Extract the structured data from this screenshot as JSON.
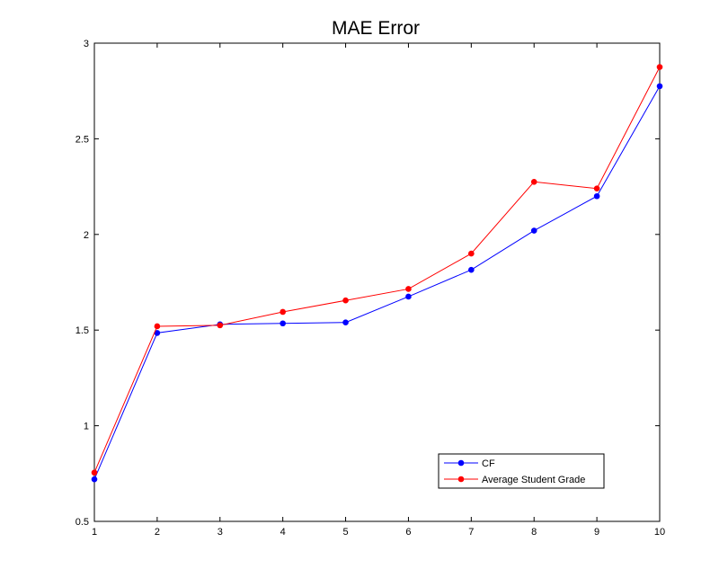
{
  "chart_data": {
    "type": "line",
    "title": "MAE Error",
    "xlabel": "",
    "ylabel": "",
    "x": [
      1,
      2,
      3,
      4,
      5,
      6,
      7,
      8,
      9,
      10
    ],
    "xlim": [
      1,
      10
    ],
    "ylim": [
      0.5,
      3
    ],
    "xticks": [
      "1",
      "2",
      "3",
      "4",
      "5",
      "6",
      "7",
      "8",
      "9",
      "10"
    ],
    "yticks": [
      "0.5",
      "1",
      "1.5",
      "2",
      "2.5",
      "3"
    ],
    "grid": false,
    "legend_position": "lower-right",
    "series": [
      {
        "name": "CF",
        "color": "#0000ff",
        "marker": "dot",
        "values": [
          0.72,
          1.485,
          1.53,
          1.535,
          1.54,
          1.675,
          1.815,
          2.02,
          2.2,
          2.775
        ]
      },
      {
        "name": "Average Student Grade",
        "color": "#ff0000",
        "marker": "dot",
        "values": [
          0.755,
          1.52,
          1.525,
          1.595,
          1.655,
          1.715,
          1.9,
          2.275,
          2.24,
          2.875
        ]
      }
    ]
  }
}
